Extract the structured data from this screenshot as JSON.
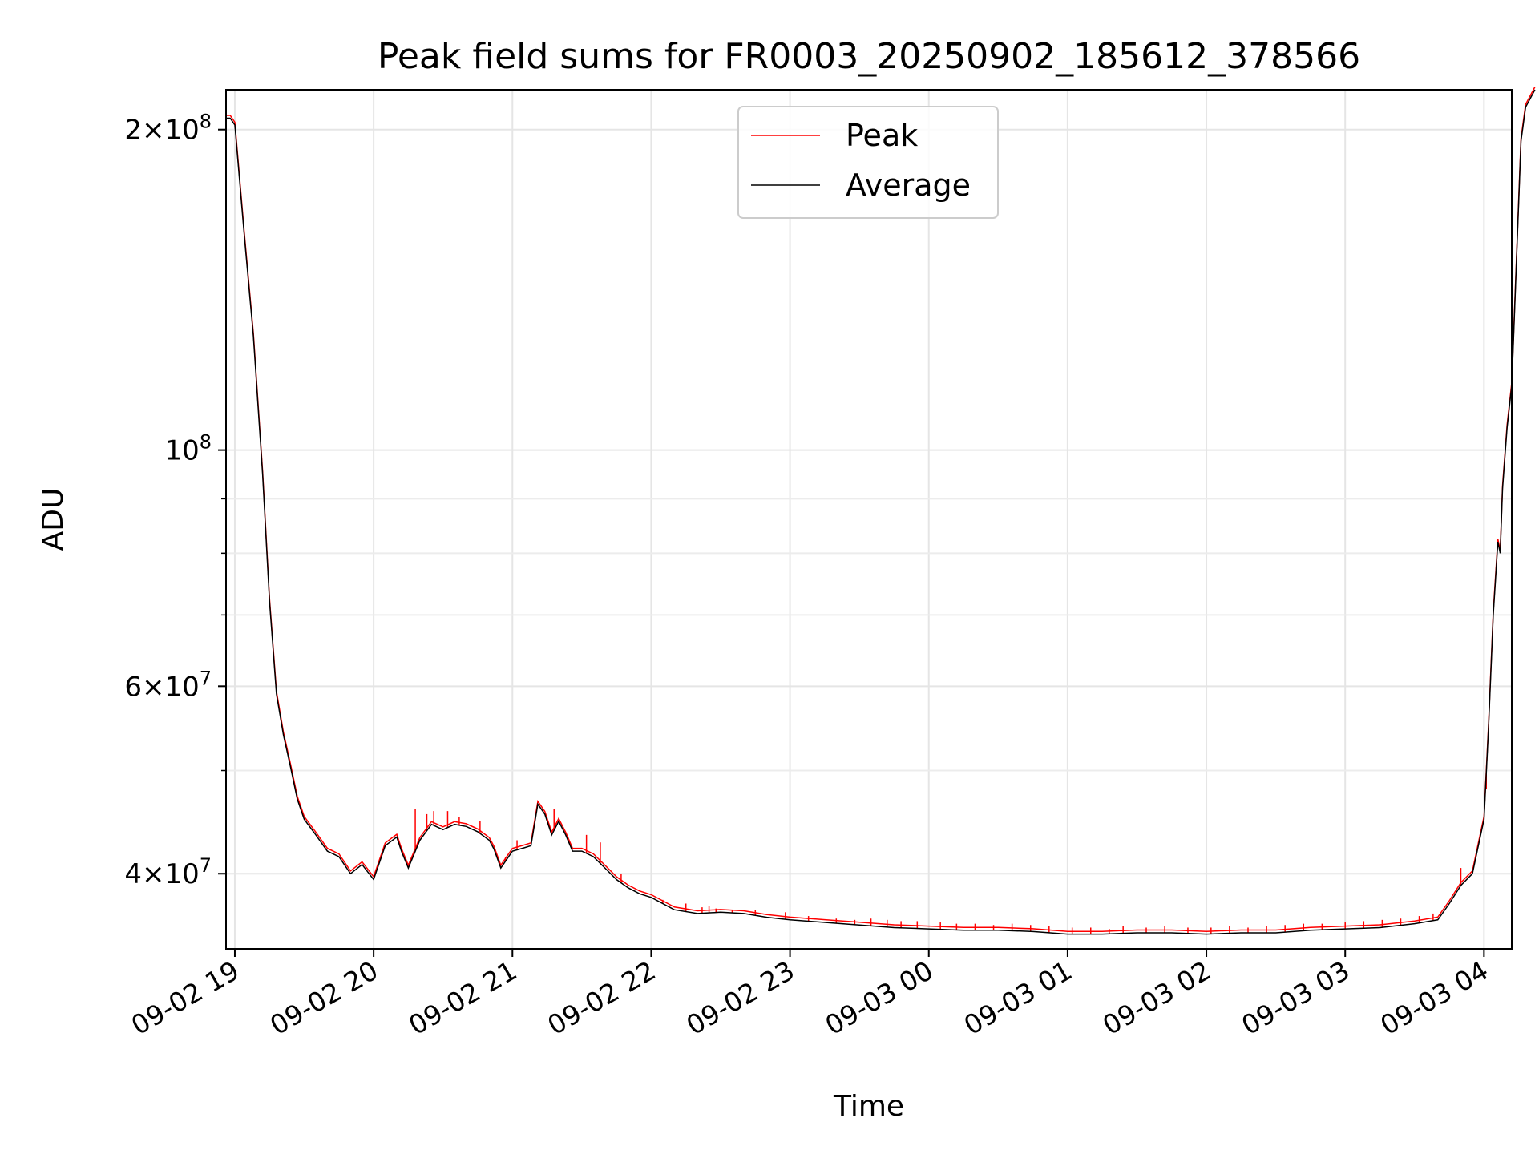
{
  "chart_data": {
    "type": "line",
    "title": "Peak field sums for FR0003_20250902_185612_378566",
    "xlabel": "Time",
    "ylabel": "ADU",
    "y_scale": "log",
    "grid": true,
    "legend_position": "upper center",
    "x_range": [
      "2025-09-02T18:56:12",
      "2025-09-03T04:12:00"
    ],
    "ylim": [
      34000000,
      218000000
    ],
    "x_ticks": [
      {
        "t": "2025-09-02T19:00",
        "label": "09-02 19"
      },
      {
        "t": "2025-09-02T20:00",
        "label": "09-02 20"
      },
      {
        "t": "2025-09-02T21:00",
        "label": "09-02 21"
      },
      {
        "t": "2025-09-02T22:00",
        "label": "09-02 22"
      },
      {
        "t": "2025-09-02T23:00",
        "label": "09-02 23"
      },
      {
        "t": "2025-09-03T00:00",
        "label": "09-03 00"
      },
      {
        "t": "2025-09-03T01:00",
        "label": "09-03 01"
      },
      {
        "t": "2025-09-03T02:00",
        "label": "09-03 02"
      },
      {
        "t": "2025-09-03T03:00",
        "label": "09-03 03"
      },
      {
        "t": "2025-09-03T04:00",
        "label": "09-03 04"
      }
    ],
    "y_major_ticks": [
      {
        "value": 40000000,
        "mant": "4",
        "exp": "7"
      },
      {
        "value": 60000000,
        "mant": "6",
        "exp": "7"
      },
      {
        "value": 100000000,
        "mant": "",
        "exp": "8"
      },
      {
        "value": 200000000,
        "mant": "2",
        "exp": "8"
      }
    ],
    "y_minor_ticks": [
      50000000,
      70000000,
      80000000,
      90000000
    ],
    "series": [
      {
        "name": "Average",
        "color": "#000000",
        "points": [
          [
            "2025-09-02T18:56:12",
            205000000
          ],
          [
            "2025-09-02T18:58:00",
            205000000
          ],
          [
            "2025-09-02T19:00:00",
            202000000
          ],
          [
            "2025-09-02T19:04:00",
            160000000
          ],
          [
            "2025-09-02T19:08:00",
            128000000
          ],
          [
            "2025-09-02T19:12:00",
            95000000
          ],
          [
            "2025-09-02T19:15:00",
            72000000
          ],
          [
            "2025-09-02T19:18:00",
            59000000
          ],
          [
            "2025-09-02T19:21:00",
            54000000
          ],
          [
            "2025-09-02T19:24:00",
            50500000
          ],
          [
            "2025-09-02T19:27:00",
            47000000
          ],
          [
            "2025-09-02T19:30:00",
            45000000
          ],
          [
            "2025-09-02T19:35:00",
            43500000
          ],
          [
            "2025-09-02T19:40:00",
            42000000
          ],
          [
            "2025-09-02T19:45:00",
            41500000
          ],
          [
            "2025-09-02T19:50:00",
            40000000
          ],
          [
            "2025-09-02T19:55:00",
            40800000
          ],
          [
            "2025-09-02T20:00:00",
            39500000
          ],
          [
            "2025-09-02T20:05:00",
            42500000
          ],
          [
            "2025-09-02T20:10:00",
            43300000
          ],
          [
            "2025-09-02T20:12:00",
            42000000
          ],
          [
            "2025-09-02T20:15:00",
            40500000
          ],
          [
            "2025-09-02T20:20:00",
            43000000
          ],
          [
            "2025-09-02T20:25:00",
            44500000
          ],
          [
            "2025-09-02T20:30:00",
            44000000
          ],
          [
            "2025-09-02T20:35:00",
            44500000
          ],
          [
            "2025-09-02T20:40:00",
            44300000
          ],
          [
            "2025-09-02T20:45:00",
            43800000
          ],
          [
            "2025-09-02T20:50:00",
            43000000
          ],
          [
            "2025-09-02T20:52:00",
            42200000
          ],
          [
            "2025-09-02T20:55:00",
            40500000
          ],
          [
            "2025-09-02T21:00:00",
            42000000
          ],
          [
            "2025-09-02T21:05:00",
            42300000
          ],
          [
            "2025-09-02T21:08:00",
            42500000
          ],
          [
            "2025-09-02T21:11:00",
            46500000
          ],
          [
            "2025-09-02T21:14:00",
            45500000
          ],
          [
            "2025-09-02T21:17:00",
            43500000
          ],
          [
            "2025-09-02T21:20:00",
            44800000
          ],
          [
            "2025-09-02T21:23:00",
            43500000
          ],
          [
            "2025-09-02T21:26:00",
            42000000
          ],
          [
            "2025-09-02T21:30:00",
            42000000
          ],
          [
            "2025-09-02T21:35:00",
            41500000
          ],
          [
            "2025-09-02T21:40:00",
            40500000
          ],
          [
            "2025-09-02T21:45:00",
            39500000
          ],
          [
            "2025-09-02T21:50:00",
            38800000
          ],
          [
            "2025-09-02T21:55:00",
            38300000
          ],
          [
            "2025-09-02T22:00:00",
            38000000
          ],
          [
            "2025-09-02T22:10:00",
            37000000
          ],
          [
            "2025-09-02T22:20:00",
            36700000
          ],
          [
            "2025-09-02T22:30:00",
            36800000
          ],
          [
            "2025-09-02T22:40:00",
            36700000
          ],
          [
            "2025-09-02T22:50:00",
            36400000
          ],
          [
            "2025-09-02T23:00:00",
            36200000
          ],
          [
            "2025-09-02T23:15:00",
            36000000
          ],
          [
            "2025-09-02T23:30:00",
            35800000
          ],
          [
            "2025-09-02T23:45:00",
            35600000
          ],
          [
            "2025-09-03T00:00:00",
            35500000
          ],
          [
            "2025-09-03T00:15:00",
            35400000
          ],
          [
            "2025-09-03T00:30:00",
            35400000
          ],
          [
            "2025-09-03T00:45:00",
            35300000
          ],
          [
            "2025-09-03T01:00:00",
            35100000
          ],
          [
            "2025-09-03T01:15:00",
            35100000
          ],
          [
            "2025-09-03T01:30:00",
            35200000
          ],
          [
            "2025-09-03T01:45:00",
            35200000
          ],
          [
            "2025-09-03T02:00:00",
            35100000
          ],
          [
            "2025-09-03T02:15:00",
            35200000
          ],
          [
            "2025-09-03T02:30:00",
            35200000
          ],
          [
            "2025-09-03T02:45:00",
            35400000
          ],
          [
            "2025-09-03T03:00:00",
            35500000
          ],
          [
            "2025-09-03T03:15:00",
            35600000
          ],
          [
            "2025-09-03T03:30:00",
            35900000
          ],
          [
            "2025-09-03T03:40:00",
            36200000
          ],
          [
            "2025-09-03T03:45:00",
            37500000
          ],
          [
            "2025-09-03T03:50:00",
            39000000
          ],
          [
            "2025-09-03T03:55:00",
            40000000
          ],
          [
            "2025-09-03T04:00:00",
            45000000
          ],
          [
            "2025-09-03T04:02:00",
            55000000
          ],
          [
            "2025-09-03T04:04:00",
            70000000
          ],
          [
            "2025-09-03T04:06:00",
            82000000
          ],
          [
            "2025-09-03T04:07:00",
            80000000
          ],
          [
            "2025-09-03T04:08:00",
            92000000
          ],
          [
            "2025-09-03T04:10:00",
            105000000
          ],
          [
            "2025-09-03T04:12:00",
            115000000
          ],
          [
            "2025-09-03T04:14:00",
            150000000
          ],
          [
            "2025-09-03T04:16:00",
            195000000
          ],
          [
            "2025-09-03T04:18:00",
            210000000
          ],
          [
            "2025-09-03T04:22:00",
            218000000
          ]
        ]
      },
      {
        "name": "Peak",
        "color": "#ff0000",
        "style": "spikes",
        "points": [
          [
            "2025-09-02T20:18:00",
            46000000
          ],
          [
            "2025-09-02T20:23:00",
            45500000
          ],
          [
            "2025-09-02T20:26:00",
            45800000
          ],
          [
            "2025-09-02T20:32:00",
            45800000
          ],
          [
            "2025-09-02T20:37:00",
            45200000
          ],
          [
            "2025-09-02T20:46:00",
            44800000
          ],
          [
            "2025-09-02T20:57:00",
            41500000
          ],
          [
            "2025-09-02T21:02:00",
            43000000
          ],
          [
            "2025-09-02T21:18:00",
            46000000
          ],
          [
            "2025-09-02T21:32:00",
            43500000
          ],
          [
            "2025-09-02T21:38:00",
            42800000
          ],
          [
            "2025-09-02T21:47:00",
            40000000
          ],
          [
            "2025-09-02T22:05:00",
            37800000
          ],
          [
            "2025-09-02T22:15:00",
            37500000
          ],
          [
            "2025-09-02T22:22:00",
            37200000
          ],
          [
            "2025-09-02T22:25:00",
            37300000
          ],
          [
            "2025-09-02T22:28:00",
            37100000
          ],
          [
            "2025-09-02T22:35:00",
            37000000
          ],
          [
            "2025-09-02T22:45:00",
            37000000
          ],
          [
            "2025-09-02T22:58:00",
            36800000
          ],
          [
            "2025-09-02T23:08:00",
            36500000
          ],
          [
            "2025-09-02T23:20:00",
            36300000
          ],
          [
            "2025-09-02T23:28:00",
            36200000
          ],
          [
            "2025-09-02T23:35:00",
            36300000
          ],
          [
            "2025-09-02T23:42:00",
            36200000
          ],
          [
            "2025-09-02T23:48:00",
            36100000
          ],
          [
            "2025-09-02T23:55:00",
            36100000
          ],
          [
            "2025-09-03T00:05:00",
            36000000
          ],
          [
            "2025-09-03T00:12:00",
            35900000
          ],
          [
            "2025-09-03T00:20:00",
            35900000
          ],
          [
            "2025-09-03T00:28:00",
            35800000
          ],
          [
            "2025-09-03T00:36:00",
            35900000
          ],
          [
            "2025-09-03T00:44:00",
            35800000
          ],
          [
            "2025-09-03T00:52:00",
            35700000
          ],
          [
            "2025-09-03T01:02:00",
            35600000
          ],
          [
            "2025-09-03T01:10:00",
            35600000
          ],
          [
            "2025-09-03T01:18:00",
            35500000
          ],
          [
            "2025-09-03T01:24:00",
            35700000
          ],
          [
            "2025-09-03T01:34:00",
            35600000
          ],
          [
            "2025-09-03T01:42:00",
            35700000
          ],
          [
            "2025-09-03T01:52:00",
            35600000
          ],
          [
            "2025-09-03T02:02:00",
            35600000
          ],
          [
            "2025-09-03T02:10:00",
            35700000
          ],
          [
            "2025-09-03T02:18:00",
            35600000
          ],
          [
            "2025-09-03T02:26:00",
            35700000
          ],
          [
            "2025-09-03T02:34:00",
            35800000
          ],
          [
            "2025-09-03T02:42:00",
            35900000
          ],
          [
            "2025-09-03T02:50:00",
            35900000
          ],
          [
            "2025-09-03T03:00:00",
            36000000
          ],
          [
            "2025-09-03T03:08:00",
            36100000
          ],
          [
            "2025-09-03T03:16:00",
            36200000
          ],
          [
            "2025-09-03T03:24:00",
            36300000
          ],
          [
            "2025-09-03T03:32:00",
            36500000
          ],
          [
            "2025-09-03T03:38:00",
            36700000
          ],
          [
            "2025-09-03T03:50:00",
            40500000
          ],
          [
            "2025-09-03T04:01:00",
            48000000
          ]
        ]
      }
    ]
  }
}
